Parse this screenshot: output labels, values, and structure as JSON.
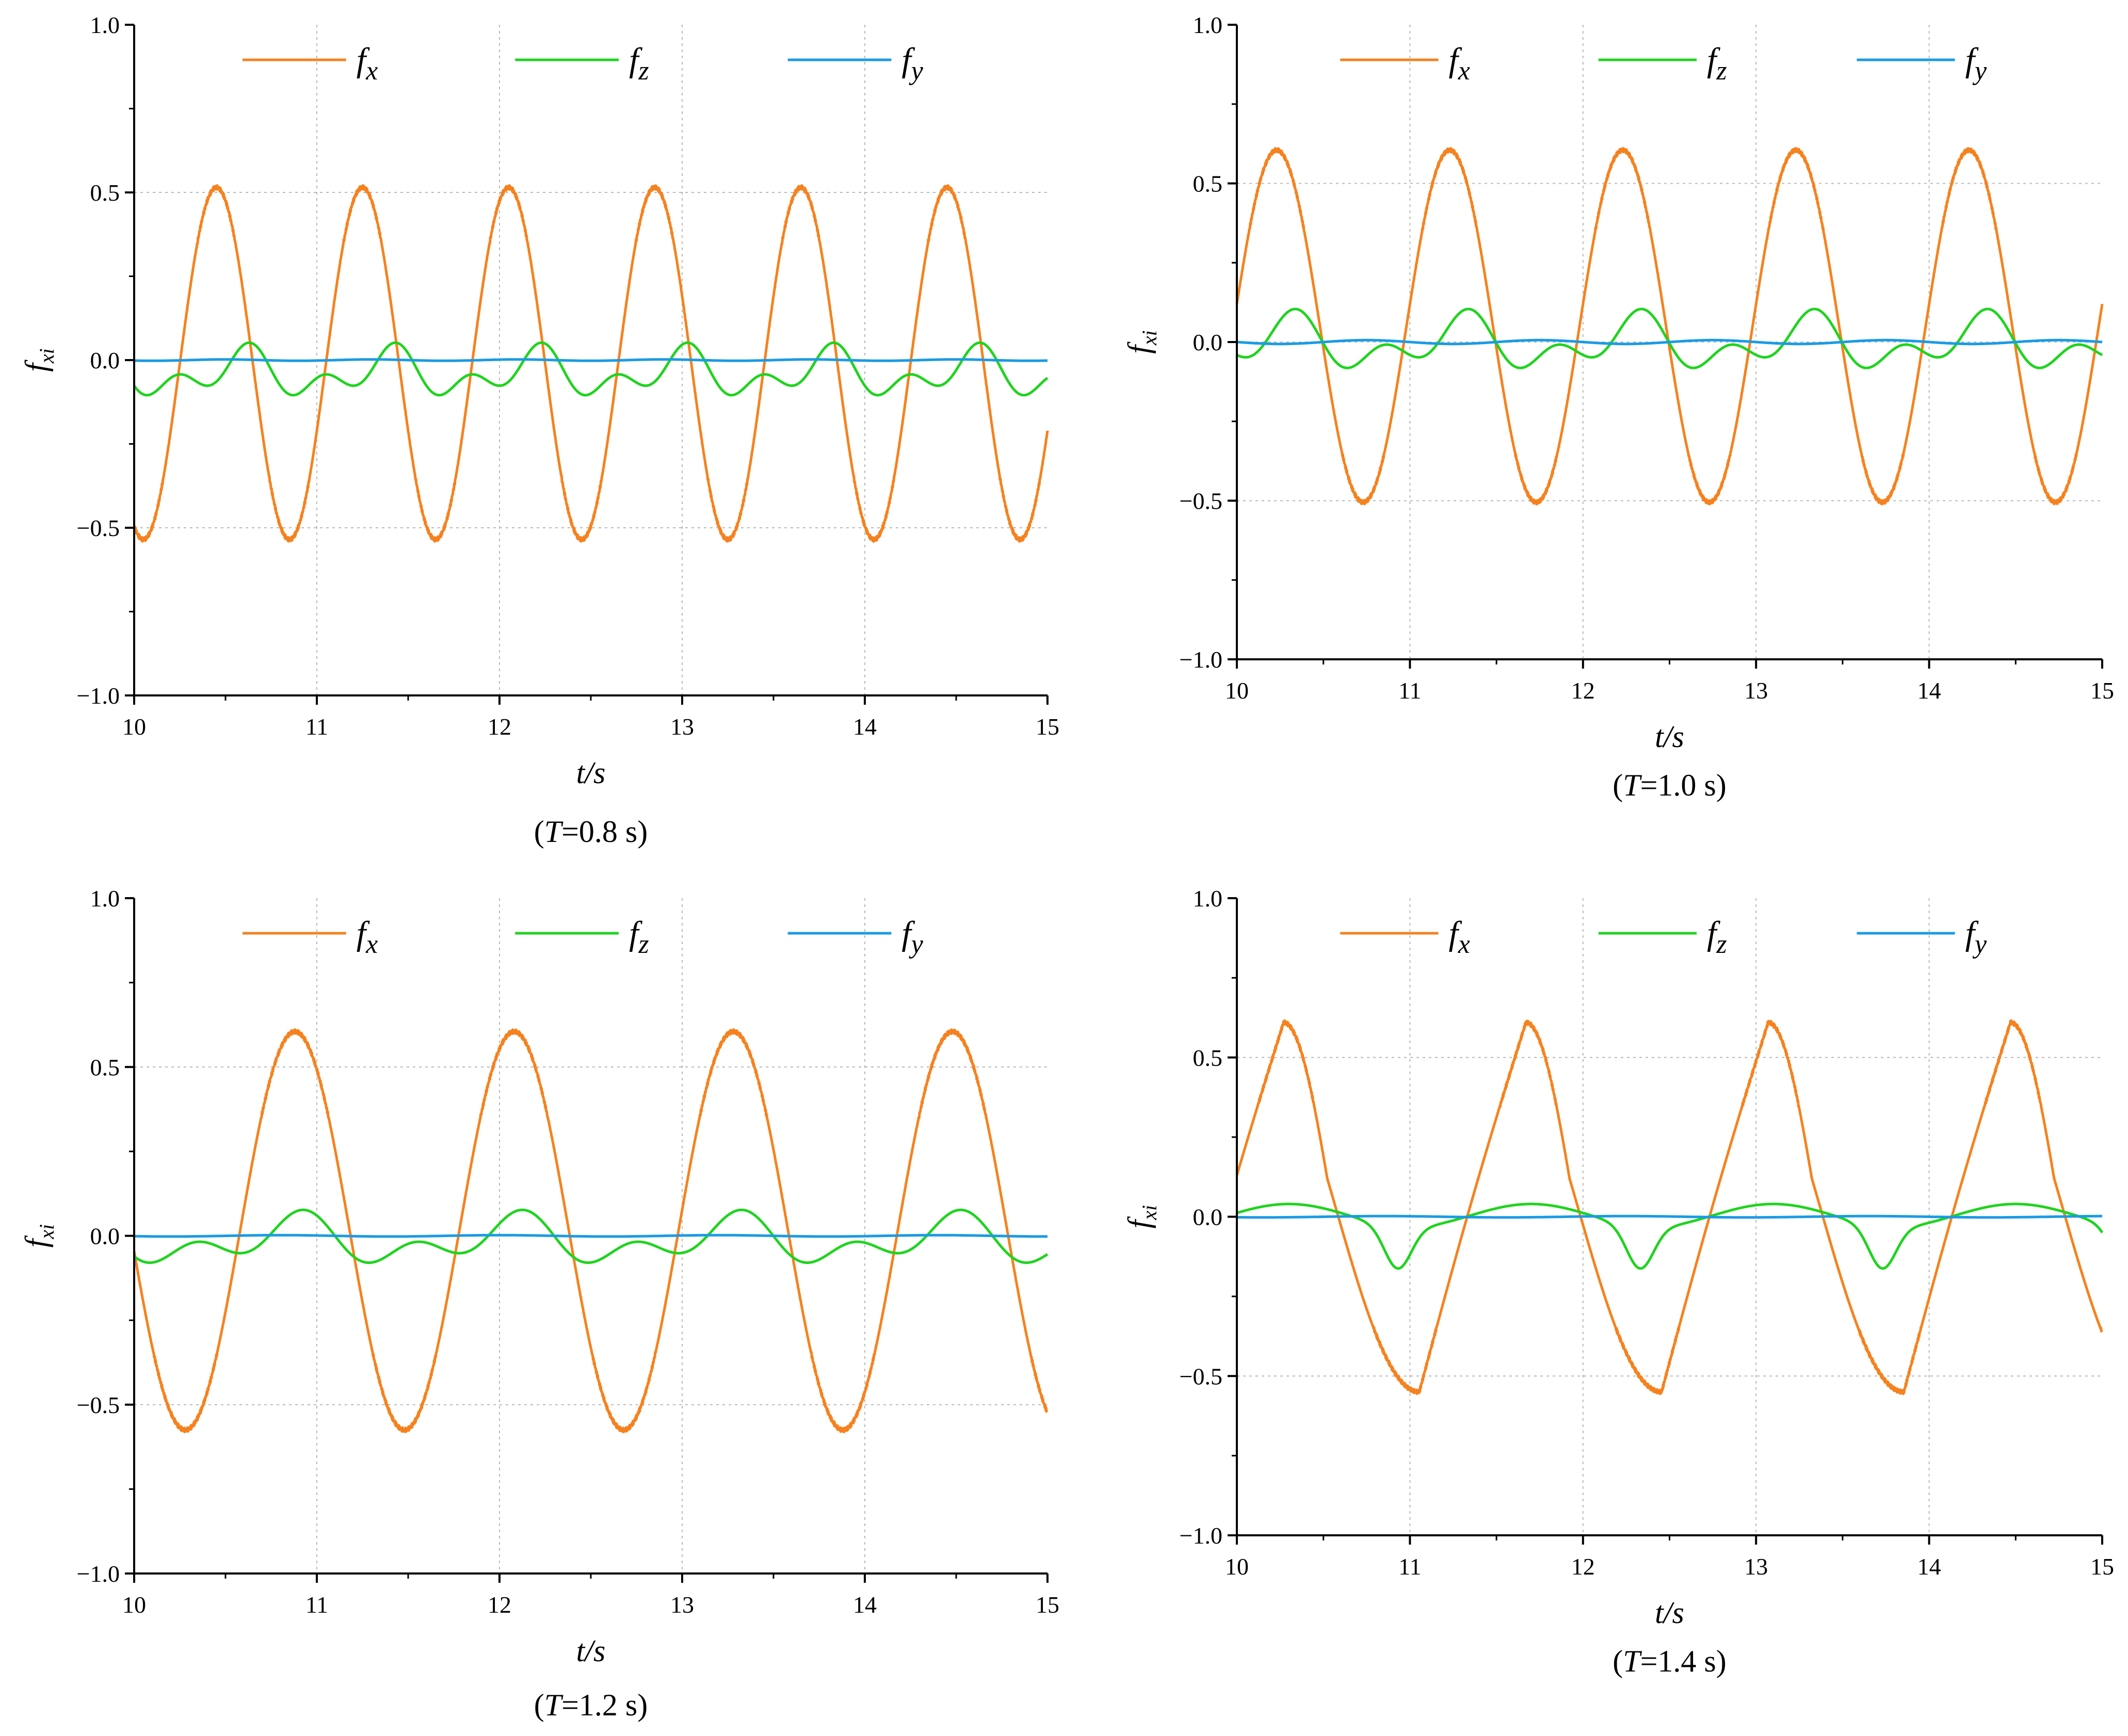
{
  "figure": {
    "colors": {
      "fx": "#f5821f",
      "fz": "#1ed41e",
      "fy": "#1a9be6",
      "grid": "#b8b8b8",
      "axis": "#000000"
    }
  },
  "chart_data": [
    {
      "type": "line",
      "panel": "top-left",
      "xlabel": "t/s",
      "ylabel": "f",
      "ylabel_sub": "xi",
      "caption": "(T=0.8 s)",
      "caption_parts": [
        "(",
        "T",
        "=0.8 s)"
      ],
      "xlim": [
        10,
        15
      ],
      "ylim": [
        -1.0,
        1.0
      ],
      "xticks": [
        "10",
        "11",
        "12",
        "13",
        "14",
        "15"
      ],
      "yticks": [
        "−1.0",
        "−0.5",
        "0.0",
        "0.5",
        "1.0"
      ],
      "grid": true,
      "legend": "top-right",
      "period": 0.8,
      "series": [
        {
          "name": "f",
          "sub": "x",
          "key": "fx",
          "amp": 0.525,
          "offset": -0.01,
          "peak_t": 10.45,
          "shape": "sine"
        },
        {
          "name": "f",
          "sub": "z",
          "key": "fz",
          "amp": 0.08,
          "offset": -0.04,
          "peak_t": 10.6,
          "shape": "double"
        },
        {
          "name": "f",
          "sub": "y",
          "key": "fy",
          "amp": 0.002,
          "offset": 0.0,
          "peak_t": 10.3,
          "shape": "flat"
        }
      ]
    },
    {
      "type": "line",
      "panel": "top-right",
      "xlabel": "t/s",
      "ylabel": "f",
      "ylabel_sub": "xi",
      "caption": "(T=1.0 s)",
      "caption_parts": [
        "(",
        "T",
        "=1.0 s)"
      ],
      "xlim": [
        10,
        15
      ],
      "ylim": [
        -1.0,
        1.0
      ],
      "xticks": [
        "10",
        "11",
        "12",
        "13",
        "14",
        "15"
      ],
      "yticks": [
        "−1.0",
        "−0.5",
        "0.0",
        "0.5",
        "1.0"
      ],
      "grid": true,
      "legend": "top-right",
      "period": 1.0,
      "series": [
        {
          "name": "f",
          "sub": "x",
          "key": "fx",
          "amp": 0.555,
          "offset": 0.05,
          "peak_t": 10.23,
          "shape": "sine"
        },
        {
          "name": "f",
          "sub": "z",
          "key": "fz",
          "amp": 0.095,
          "offset": -0.005,
          "peak_t": 10.3,
          "shape": "double"
        },
        {
          "name": "f",
          "sub": "y",
          "key": "fy",
          "amp": 0.006,
          "offset": 0.0,
          "peak_t": 10.5,
          "shape": "flat"
        }
      ]
    },
    {
      "type": "line",
      "panel": "bottom-left",
      "xlabel": "t/s",
      "ylabel": "f",
      "ylabel_sub": "xi",
      "caption": "(T=1.2 s)",
      "caption_parts": [
        "(",
        "T",
        "=1.2 s)"
      ],
      "xlim": [
        10,
        15
      ],
      "ylim": [
        -1.0,
        1.0
      ],
      "xticks": [
        "10",
        "11",
        "12",
        "13",
        "14",
        "15"
      ],
      "yticks": [
        "−1.0",
        "−0.5",
        "0.0",
        "0.5",
        "1.0"
      ],
      "grid": true,
      "legend": "top-right",
      "period": 1.2,
      "series": [
        {
          "name": "f",
          "sub": "x",
          "key": "fx",
          "amp": 0.59,
          "offset": 0.015,
          "peak_t": 10.88,
          "shape": "sine"
        },
        {
          "name": "f",
          "sub": "z",
          "key": "fz",
          "amp": 0.08,
          "offset": -0.015,
          "peak_t": 10.88,
          "shape": "double"
        },
        {
          "name": "f",
          "sub": "y",
          "key": "fy",
          "amp": 0.002,
          "offset": 0.0,
          "peak_t": 10.5,
          "shape": "flat"
        }
      ]
    },
    {
      "type": "line",
      "panel": "bottom-right",
      "xlabel": "t/s",
      "ylabel": "f",
      "ylabel_sub": "xi",
      "caption": "(T=1.4 s)",
      "caption_parts": [
        "(",
        "T",
        "=1.4 s)"
      ],
      "xlim": [
        10,
        15
      ],
      "ylim": [
        -1.0,
        1.0
      ],
      "xticks": [
        "10",
        "11",
        "12",
        "13",
        "14",
        "15"
      ],
      "yticks": [
        "−1.0",
        "−0.5",
        "0.0",
        "0.5",
        "1.0"
      ],
      "grid": true,
      "legend": "top-right",
      "period": 1.4,
      "series": [
        {
          "name": "f",
          "sub": "x",
          "key": "fx",
          "amp": 0.58,
          "offset": 0.03,
          "peak_t": 10.27,
          "shape": "skewed"
        },
        {
          "name": "f",
          "sub": "z",
          "key": "fz",
          "amp": 0.06,
          "offset": -0.02,
          "peak_t": 10.3,
          "shape": "dip"
        },
        {
          "name": "f",
          "sub": "y",
          "key": "fy",
          "amp": 0.002,
          "offset": 0.0,
          "peak_t": 10.5,
          "shape": "flat"
        }
      ]
    }
  ]
}
